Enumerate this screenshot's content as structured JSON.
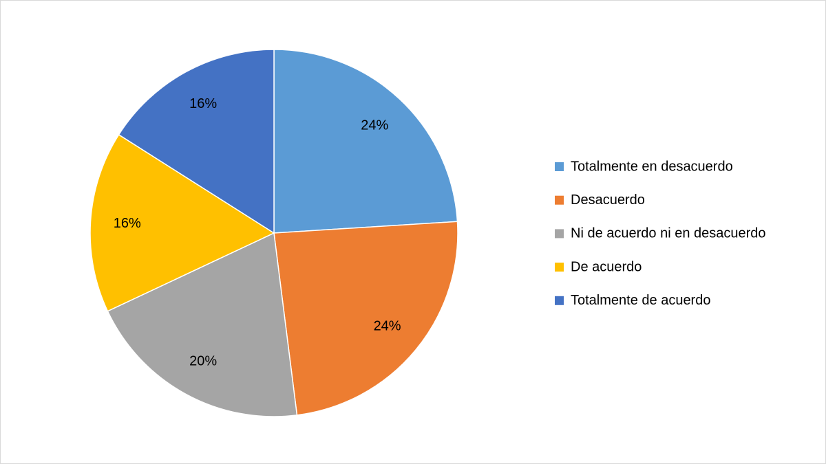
{
  "chart_data": {
    "type": "pie",
    "categories": [
      "Totalmente en desacuerdo",
      "Desacuerdo",
      "Ni de acuerdo ni en desacuerdo",
      "De acuerdo",
      "Totalmente de acuerdo"
    ],
    "values": [
      24,
      24,
      20,
      16,
      16
    ],
    "value_labels": [
      "24%",
      "24%",
      "20%",
      "16%",
      "16%"
    ],
    "colors": [
      "#5b9bd5",
      "#ed7d31",
      "#a5a5a5",
      "#ffc000",
      "#4472c4"
    ],
    "legend": "right"
  }
}
